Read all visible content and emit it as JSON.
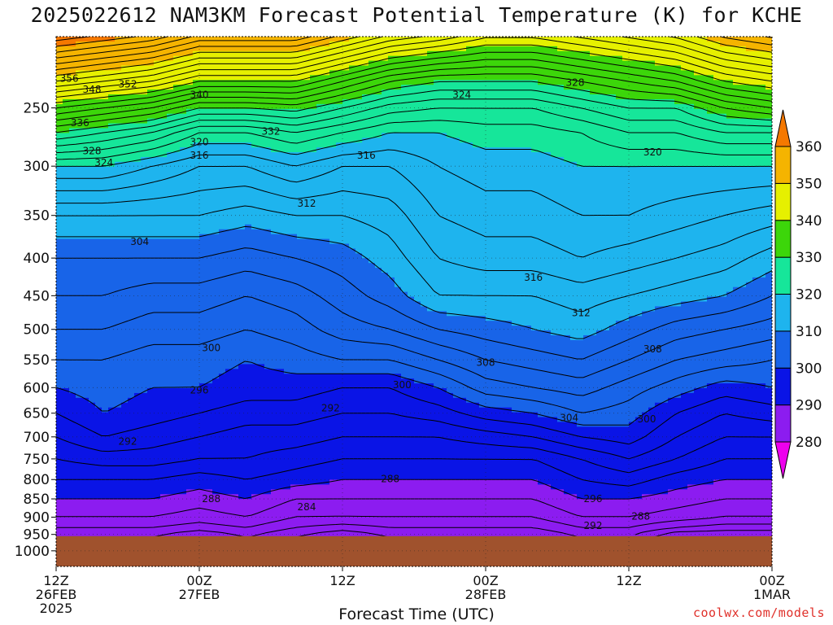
{
  "title": "2025022612 NAM3KM Forecast Potential Temperature (K) for KCHE",
  "xlabel": "Forecast Time (UTC)",
  "credit": "coolwx.com/models",
  "chart_data": {
    "type": "contour",
    "title": "2025022612 NAM3KM Forecast Potential Temperature (K) for KCHE",
    "xlabel": "Forecast Time (UTC)",
    "ylabel": "",
    "y_axis": {
      "scale": "log",
      "reversed": true,
      "range": [
        1050,
        200
      ],
      "ticks": [
        250,
        300,
        350,
        400,
        450,
        500,
        550,
        600,
        650,
        700,
        750,
        800,
        850,
        900,
        950,
        1000
      ]
    },
    "x_axis": {
      "range_hours": [
        0,
        60
      ],
      "ticks": [
        {
          "hour": 0,
          "lines": [
            "12Z",
            "26FEB",
            "2025"
          ]
        },
        {
          "hour": 12,
          "lines": [
            "00Z",
            "27FEB"
          ]
        },
        {
          "hour": 24,
          "lines": [
            "12Z"
          ]
        },
        {
          "hour": 36,
          "lines": [
            "00Z",
            "28FEB"
          ]
        },
        {
          "hour": 48,
          "lines": [
            "12Z"
          ]
        },
        {
          "hour": 60,
          "lines": [
            "00Z",
            "1MAR"
          ]
        }
      ]
    },
    "colorbar": {
      "ticks": [
        280,
        290,
        300,
        310,
        320,
        330,
        340,
        350,
        360
      ],
      "bins": [
        {
          "min": 275,
          "max": 280,
          "color": "#ee00ee"
        },
        {
          "min": 280,
          "max": 290,
          "color": "#8c1cf0"
        },
        {
          "min": 290,
          "max": 300,
          "color": "#0a14e6"
        },
        {
          "min": 300,
          "max": 310,
          "color": "#1864e8"
        },
        {
          "min": 310,
          "max": 320,
          "color": "#1eb4ee"
        },
        {
          "min": 320,
          "max": 330,
          "color": "#16e69a"
        },
        {
          "min": 330,
          "max": 340,
          "color": "#3cd60a"
        },
        {
          "min": 340,
          "max": 350,
          "color": "#e6f000"
        },
        {
          "min": 350,
          "max": 360,
          "color": "#f5b400"
        },
        {
          "min": 360,
          "max": 370,
          "color": "#f57800"
        }
      ]
    },
    "terrain": {
      "surface_pressure": 955,
      "color": "#a0522d"
    },
    "contour_interval": 2,
    "profile_hours": [
      0,
      4,
      8,
      12,
      16,
      20,
      24,
      28,
      32,
      36,
      40,
      44,
      48,
      52,
      56,
      60
    ],
    "profile_levels": [
      955,
      930,
      900,
      850,
      800,
      750,
      700,
      650,
      600,
      550,
      500,
      450,
      400,
      350,
      300,
      270,
      250,
      230,
      210
    ],
    "profiles": [
      [
        284,
        286,
        288,
        290,
        292,
        294,
        296,
        298,
        300,
        302,
        304,
        306,
        308,
        312,
        320,
        330,
        338,
        348,
        358
      ],
      [
        284,
        286,
        288,
        290,
        292,
        295,
        298,
        300,
        301,
        302,
        304,
        306,
        308,
        312,
        320,
        328,
        336,
        346,
        356
      ],
      [
        284,
        286,
        288,
        290,
        292,
        295,
        297,
        299,
        300,
        301,
        303,
        305,
        308,
        312,
        318,
        326,
        334,
        344,
        354
      ],
      [
        282,
        285,
        287,
        289,
        291,
        294,
        296,
        298,
        300,
        301,
        303,
        305,
        308,
        312,
        316,
        322,
        330,
        340,
        350
      ],
      [
        284,
        286,
        288,
        290,
        292,
        294,
        295,
        297,
        299,
        300,
        302,
        304,
        307,
        311,
        316,
        322,
        330,
        340,
        350
      ],
      [
        282,
        284,
        286,
        288,
        291,
        293,
        295,
        297,
        299,
        301,
        303,
        305,
        308,
        312,
        318,
        324,
        331,
        340,
        350
      ],
      [
        280,
        283,
        286,
        288,
        290,
        292,
        294,
        296,
        298,
        302,
        305,
        307,
        309,
        312,
        316,
        322,
        328,
        336,
        346
      ],
      [
        282,
        284,
        286,
        288,
        290,
        292,
        294,
        296,
        298,
        302,
        306,
        309,
        311,
        313,
        316,
        320,
        325,
        332,
        342
      ],
      [
        282,
        284,
        286,
        288,
        290,
        292,
        294,
        297,
        300,
        304,
        308,
        312,
        314,
        316,
        318,
        320,
        324,
        330,
        340
      ],
      [
        282,
        284,
        286,
        288,
        290,
        292,
        295,
        299,
        303,
        306,
        309,
        312,
        315,
        317,
        319,
        321,
        324,
        330,
        338
      ],
      [
        282,
        284,
        286,
        288,
        290,
        292,
        296,
        300,
        304,
        307,
        310,
        312,
        315,
        317,
        319,
        321,
        324,
        330,
        338
      ],
      [
        284,
        286,
        288,
        290,
        292,
        294,
        298,
        302,
        305,
        308,
        311,
        313,
        316,
        318,
        320,
        322,
        326,
        332,
        340
      ],
      [
        284,
        286,
        288,
        290,
        293,
        296,
        299,
        301,
        303,
        306,
        309,
        312,
        315,
        318,
        320,
        324,
        328,
        334,
        342
      ],
      [
        280,
        284,
        287,
        289,
        291,
        294,
        296,
        298,
        301,
        304,
        307,
        311,
        314,
        317,
        320,
        324,
        328,
        336,
        344
      ],
      [
        280,
        283,
        286,
        288,
        290,
        292,
        294,
        296,
        299,
        303,
        306,
        310,
        313,
        316,
        320,
        326,
        332,
        340,
        348
      ],
      [
        280,
        283,
        286,
        288,
        290,
        292,
        294,
        297,
        300,
        302,
        305,
        308,
        311,
        315,
        320,
        326,
        334,
        342,
        350
      ]
    ],
    "contour_labels": [
      {
        "value": 356,
        "hour": 1.1,
        "p": 228
      },
      {
        "value": 352,
        "hour": 6.0,
        "p": 232
      },
      {
        "value": 348,
        "hour": 3.0,
        "p": 236
      },
      {
        "value": 340,
        "hour": 12.0,
        "p": 240
      },
      {
        "value": 328,
        "hour": 43.5,
        "p": 231
      },
      {
        "value": 324,
        "hour": 34.0,
        "p": 240
      },
      {
        "value": 336,
        "hour": 2.0,
        "p": 262
      },
      {
        "value": 332,
        "hour": 18.0,
        "p": 269
      },
      {
        "value": 320,
        "hour": 12.0,
        "p": 278
      },
      {
        "value": 328,
        "hour": 3.0,
        "p": 286
      },
      {
        "value": 316,
        "hour": 12.0,
        "p": 290
      },
      {
        "value": 324,
        "hour": 4.0,
        "p": 297
      },
      {
        "value": 316,
        "hour": 26.0,
        "p": 290
      },
      {
        "value": 320,
        "hour": 50.0,
        "p": 287
      },
      {
        "value": 312,
        "hour": 21.0,
        "p": 337
      },
      {
        "value": 304,
        "hour": 7.0,
        "p": 380
      },
      {
        "value": 316,
        "hour": 40.0,
        "p": 425
      },
      {
        "value": 312,
        "hour": 44.0,
        "p": 475
      },
      {
        "value": 300,
        "hour": 13.0,
        "p": 530
      },
      {
        "value": 308,
        "hour": 36.0,
        "p": 555
      },
      {
        "value": 308,
        "hour": 50.0,
        "p": 532
      },
      {
        "value": 296,
        "hour": 12.0,
        "p": 605
      },
      {
        "value": 300,
        "hour": 29.0,
        "p": 595
      },
      {
        "value": 292,
        "hour": 23.0,
        "p": 640
      },
      {
        "value": 304,
        "hour": 43.0,
        "p": 660
      },
      {
        "value": 300,
        "hour": 49.5,
        "p": 662
      },
      {
        "value": 292,
        "hour": 6.0,
        "p": 710
      },
      {
        "value": 288,
        "hour": 28.0,
        "p": 798
      },
      {
        "value": 288,
        "hour": 13.0,
        "p": 850
      },
      {
        "value": 284,
        "hour": 21.0,
        "p": 872
      },
      {
        "value": 296,
        "hour": 45.0,
        "p": 850
      },
      {
        "value": 288,
        "hour": 49.0,
        "p": 898
      },
      {
        "value": 292,
        "hour": 45.0,
        "p": 925
      }
    ]
  }
}
